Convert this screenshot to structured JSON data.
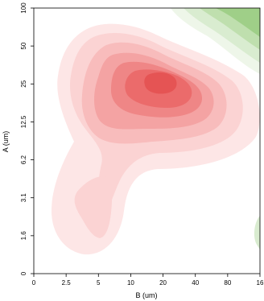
{
  "chart_data": {
    "type": "heatmap",
    "subtype": "2D density contour plot",
    "xlabel": "B (um)",
    "ylabel": "A (um)",
    "x_ticks": [
      "0",
      "2.5",
      "5",
      "10",
      "20",
      "40",
      "80",
      "16"
    ],
    "y_ticks": [
      "0",
      "1.6",
      "3.1",
      "6.2",
      "12.5",
      "25",
      "50",
      "100"
    ],
    "x_scale": "log2-like tick spacing",
    "y_scale": "log2-like tick spacing",
    "grid": false,
    "legend": "none",
    "colors": {
      "red_levels": [
        "#fde6e6",
        "#fbd3d3",
        "#f8bcbc",
        "#f4a3a3",
        "#ef8686",
        "#eb6b6b",
        "#e55454"
      ],
      "green_levels": [
        "#eef6e9",
        "#d9ecd0",
        "#bfdfae",
        "#9fcf88"
      ]
    },
    "features": [
      {
        "group": "red density",
        "peak_x": 20,
        "peak_y": 25
      },
      {
        "group": "red density (secondary)",
        "peak_x": 5,
        "peak_y": 3.1
      },
      {
        "group": "green density",
        "location": "top-right corner"
      },
      {
        "group": "green density",
        "location": "right edge near y=1.6"
      }
    ]
  }
}
